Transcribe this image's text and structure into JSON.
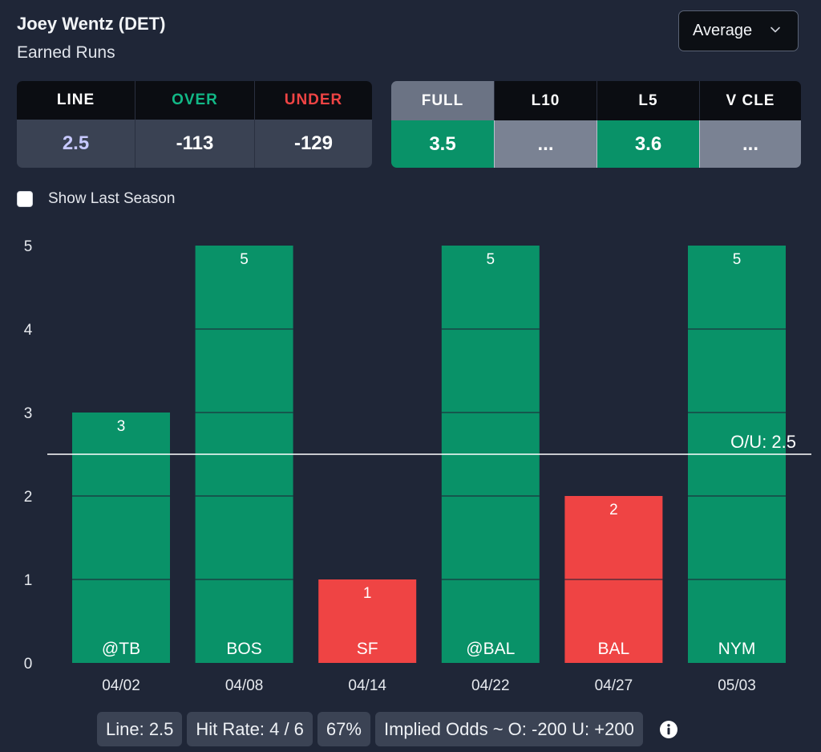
{
  "header": {
    "player": "Joey Wentz (DET)",
    "stat": "Earned Runs"
  },
  "dropdown": {
    "selected": "Average"
  },
  "odds": {
    "headers": [
      "LINE",
      "OVER",
      "UNDER"
    ],
    "values": [
      "2.5",
      "-113",
      "-129"
    ],
    "colors": {
      "line_value": "#c7c9ff",
      "over_header": "#12b886",
      "under_header": "#ef4444"
    }
  },
  "splits": {
    "headers": [
      "FULL",
      "L10",
      "L5",
      "V CLE"
    ],
    "values": [
      "3.5",
      "...",
      "3.6",
      "..."
    ],
    "active": "FULL"
  },
  "toggle": {
    "label": "Show Last Season",
    "checked": false
  },
  "chart_data": {
    "type": "bar",
    "categories": [
      "04/02",
      "04/08",
      "04/14",
      "04/22",
      "04/27",
      "05/03"
    ],
    "opponents": [
      "@TB",
      "BOS",
      "SF",
      "@BAL",
      "BAL",
      "NYM"
    ],
    "values": [
      3,
      5,
      1,
      5,
      2,
      5
    ],
    "ylim": [
      0,
      5
    ],
    "yticks": [
      0,
      1,
      2,
      3,
      4,
      5
    ],
    "reference_line": {
      "value": 2.5,
      "label": "O/U: 2.5"
    },
    "colors": {
      "over": "#099268",
      "under": "#ef4444"
    }
  },
  "footer": {
    "pills": [
      "Line: 2.5",
      "Hit Rate: 4 / 6",
      "67%",
      "Implied Odds ~ O: -200 U: +200"
    ]
  }
}
